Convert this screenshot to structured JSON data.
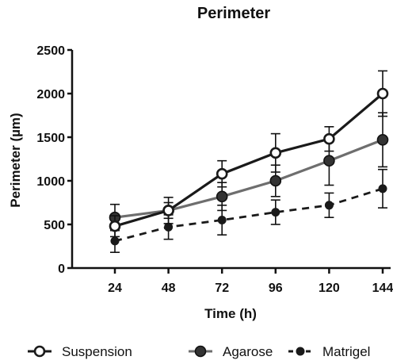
{
  "chart_data": {
    "type": "line",
    "title": "Perimeter",
    "xlabel": "Time (h)",
    "ylabel": "Perimeter (µm)",
    "x": [
      24,
      48,
      72,
      96,
      120,
      144
    ],
    "xticks": [
      "24",
      "48",
      "72",
      "96",
      "120",
      "144"
    ],
    "ylim": [
      0,
      2500
    ],
    "yticks": [
      "0",
      "500",
      "1000",
      "1500",
      "2000",
      "2500"
    ],
    "ytick_values": [
      0,
      500,
      1000,
      1500,
      2000,
      2500
    ],
    "grid": false,
    "legend_position": "bottom",
    "series": [
      {
        "name": "Suspension",
        "values": [
          480,
          660,
          1080,
          1320,
          1480,
          2000
        ],
        "errors": [
          120,
          90,
          150,
          220,
          140,
          260
        ],
        "color": "#1a1a1a",
        "line": "solid",
        "marker": "open-circle"
      },
      {
        "name": "Agarose",
        "values": [
          580,
          660,
          820,
          1000,
          1230,
          1470
        ],
        "errors": [
          150,
          150,
          160,
          180,
          280,
          310
        ],
        "color": "#6e6e6e",
        "line": "solid",
        "marker": "filled-circle-gray"
      },
      {
        "name": "Matrigel",
        "values": [
          310,
          470,
          550,
          640,
          720,
          910
        ],
        "errors": [
          130,
          140,
          170,
          140,
          140,
          220
        ],
        "color": "#1a1a1a",
        "line": "dashed",
        "marker": "filled-circle-small"
      }
    ]
  }
}
